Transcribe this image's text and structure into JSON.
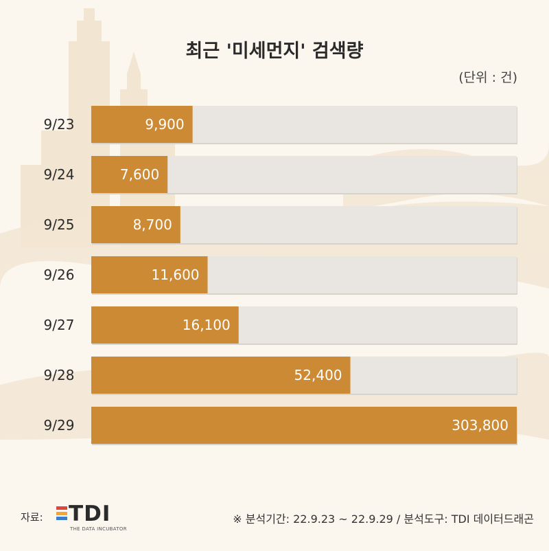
{
  "chart_data": {
    "type": "bar",
    "orientation": "horizontal",
    "title": "최근 '미세먼지' 검색량",
    "unit_label": "(단위 : 건)",
    "categories": [
      "9/23",
      "9/24",
      "9/25",
      "9/26",
      "9/27",
      "9/28",
      "9/29"
    ],
    "values": [
      9900,
      7600,
      8700,
      11600,
      16100,
      52400,
      303800
    ],
    "value_labels": [
      "9,900",
      "7,600",
      "8,700",
      "11,600",
      "16,100",
      "52,400",
      "303,800"
    ],
    "scale": "log",
    "grid": false,
    "legend": "none",
    "colors": {
      "bar": "#cd8a35",
      "track": "#e9e6e2",
      "label_text": "#ffffff"
    }
  },
  "footer": {
    "source_label": "자료:",
    "logo_text": "TDI",
    "logo_subtext": "THE DATA INCUBATOR",
    "logo_colors": [
      "#e0443e",
      "#f0a830",
      "#3a7dc8"
    ],
    "note": "※ 분석기간: 22.9.23 ~ 22.9.29 / 분석도구: TDI 데이터드래곤"
  }
}
